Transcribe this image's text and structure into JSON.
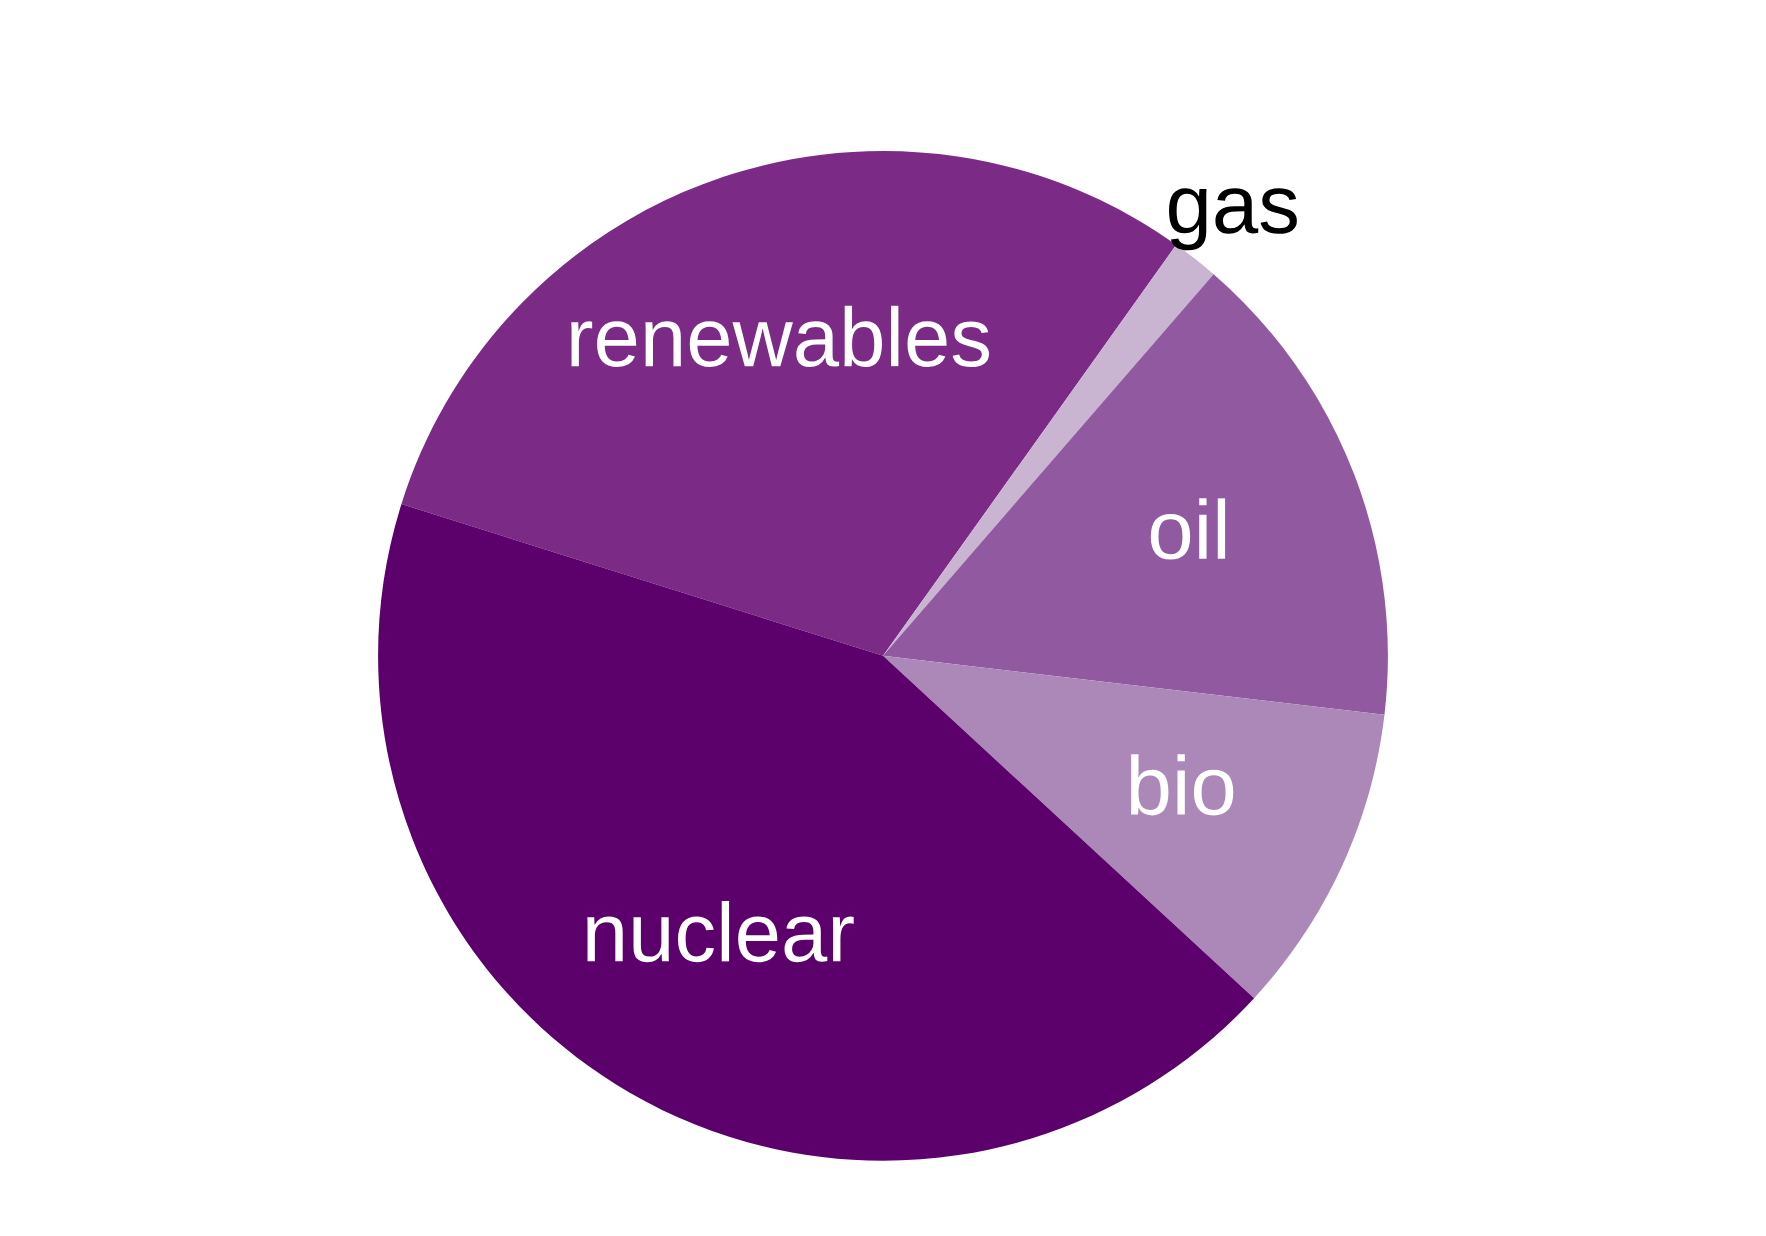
{
  "chart_data": {
    "type": "pie",
    "categories": [
      "renewables",
      "gas",
      "oil",
      "bio",
      "nuclear"
    ],
    "values": [
      30,
      1.5,
      15.5,
      10,
      43
    ],
    "colors": [
      "#7b2a86",
      "#c9b4d2",
      "#9059a0",
      "#ab88b8",
      "#5c006c"
    ]
  }
}
